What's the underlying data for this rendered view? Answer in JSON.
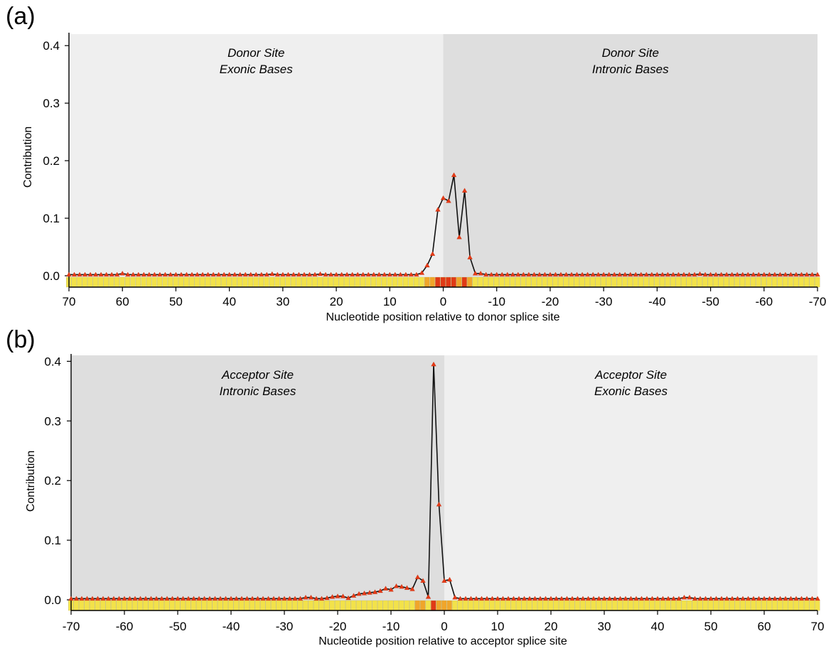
{
  "colors": {
    "region_light": "#efefef",
    "region_dark": "#dedede",
    "line": "#111111",
    "marker": "#e63a16",
    "heat_low": "#f2e24a",
    "heat_mid": "#f0a52a",
    "heat_high": "#e03a16"
  },
  "chart_data": [
    {
      "type": "line",
      "panel_label": "(a)",
      "xlabel": "Nucleotide position relative to donor splice site",
      "ylabel": "Contribution",
      "x_reversed": true,
      "xlim": [
        70,
        -70
      ],
      "ylim": [
        -0.01,
        0.42
      ],
      "xticks": [
        70,
        60,
        50,
        40,
        30,
        20,
        10,
        0,
        -10,
        -20,
        -30,
        -40,
        -50,
        -60,
        -70
      ],
      "xtick_labels": [
        "70",
        "60",
        "50",
        "40",
        "30",
        "20",
        "10",
        "0",
        "-10",
        "-20",
        "-30",
        "-40",
        "-50",
        "-60",
        "-70"
      ],
      "yticks": [
        0.0,
        0.1,
        0.2,
        0.3,
        0.4
      ],
      "ytick_labels": [
        "0.0",
        "0.1",
        "0.2",
        "0.3",
        "0.4"
      ],
      "regions": [
        {
          "from": 70,
          "to": 0,
          "shade": "light",
          "line1": "Donor Site",
          "line2": "Exonic Bases",
          "label_x": 35
        },
        {
          "from": 0,
          "to": -70,
          "shade": "dark",
          "line1": "Donor Site",
          "line2": "Intronic Bases",
          "label_x": -35
        }
      ],
      "baseline": 0.002,
      "peaks": [
        [
          60,
          0.004
        ],
        [
          32,
          0.003
        ],
        [
          23,
          0.003
        ],
        [
          5,
          0.002
        ],
        [
          4,
          0.005
        ],
        [
          3,
          0.018
        ],
        [
          2,
          0.038
        ],
        [
          1,
          0.115
        ],
        [
          0,
          0.135
        ],
        [
          -1,
          0.13
        ],
        [
          -2,
          0.175
        ],
        [
          -3,
          0.067
        ],
        [
          -4,
          0.148
        ],
        [
          -5,
          0.032
        ],
        [
          -6,
          0.004
        ],
        [
          -7,
          0.004
        ],
        [
          -48,
          0.003
        ]
      ]
    },
    {
      "type": "line",
      "panel_label": "(b)",
      "xlabel": "Nucleotide position relative to acceptor splice site",
      "ylabel": "Contribution",
      "x_reversed": false,
      "xlim": [
        -70,
        70
      ],
      "ylim": [
        -0.01,
        0.41
      ],
      "xticks": [
        -70,
        -60,
        -50,
        -40,
        -30,
        -20,
        -10,
        0,
        10,
        20,
        30,
        40,
        50,
        60,
        70
      ],
      "xtick_labels": [
        "-70",
        "-60",
        "-50",
        "-40",
        "-30",
        "-20",
        "-10",
        "0",
        "10",
        "20",
        "30",
        "40",
        "50",
        "60",
        "70"
      ],
      "yticks": [
        0.0,
        0.1,
        0.2,
        0.3,
        0.4
      ],
      "ytick_labels": [
        "0.0",
        "0.1",
        "0.2",
        "0.3",
        "0.4"
      ],
      "regions": [
        {
          "from": -70,
          "to": 0,
          "shade": "dark",
          "line1": "Acceptor Site",
          "line2": "Intronic Bases",
          "label_x": -35
        },
        {
          "from": 0,
          "to": 70,
          "shade": "light",
          "line1": "Acceptor Site",
          "line2": "Exonic Bases",
          "label_x": 35
        }
      ],
      "baseline": 0.002,
      "peaks": [
        [
          -26,
          0.004
        ],
        [
          -25,
          0.004
        ],
        [
          -22,
          0.003
        ],
        [
          -21,
          0.005
        ],
        [
          -20,
          0.006
        ],
        [
          -19,
          0.006
        ],
        [
          -18,
          0.003
        ],
        [
          -17,
          0.007
        ],
        [
          -16,
          0.01
        ],
        [
          -15,
          0.011
        ],
        [
          -14,
          0.012
        ],
        [
          -13,
          0.013
        ],
        [
          -12,
          0.015
        ],
        [
          -11,
          0.019
        ],
        [
          -10,
          0.017
        ],
        [
          -9,
          0.023
        ],
        [
          -8,
          0.022
        ],
        [
          -7,
          0.02
        ],
        [
          -6,
          0.018
        ],
        [
          -5,
          0.038
        ],
        [
          -4,
          0.032
        ],
        [
          -3,
          0.005
        ],
        [
          -2,
          0.395
        ],
        [
          -1,
          0.16
        ],
        [
          0,
          0.032
        ],
        [
          1,
          0.034
        ],
        [
          2,
          0.004
        ],
        [
          45,
          0.004
        ],
        [
          46,
          0.004
        ]
      ]
    }
  ]
}
